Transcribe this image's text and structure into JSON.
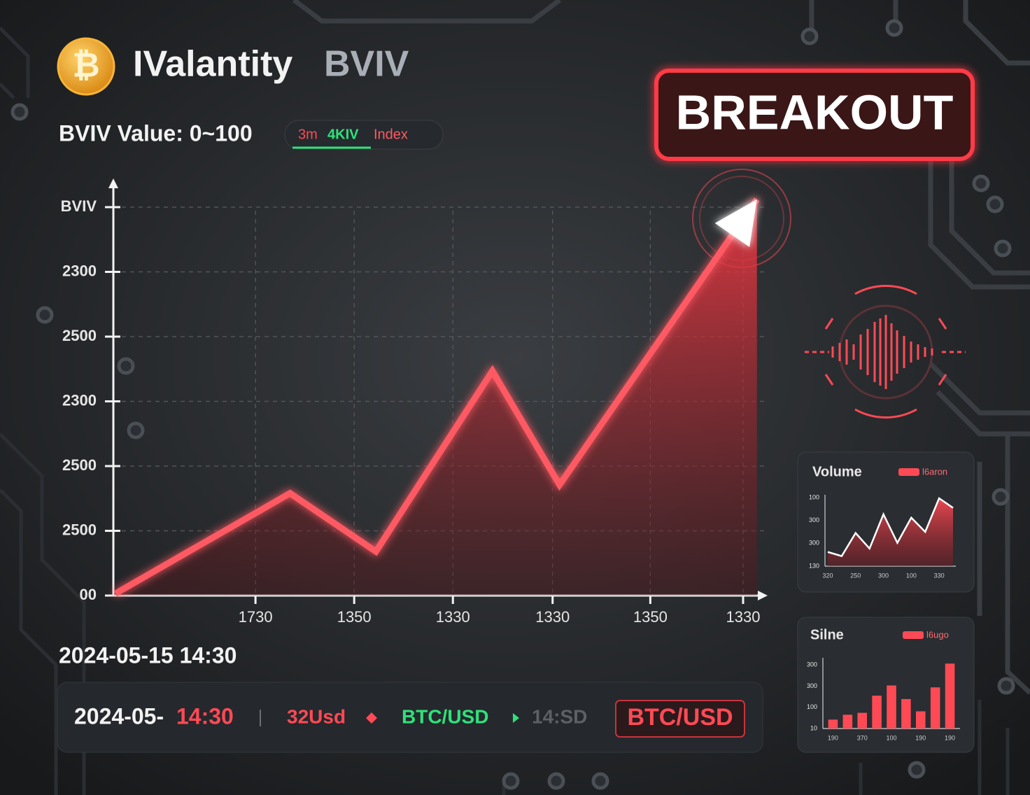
{
  "header": {
    "logo_symbol": "₿",
    "title": "IValantity",
    "ticker": "BVIV"
  },
  "subtitle": "BVIV Value: 0~100",
  "tabs": [
    "3m",
    "4KIV",
    "Index"
  ],
  "badge": "BREAKOUT",
  "timestamp": "2024-05-15 14:30",
  "status_bar": {
    "date": "2024-05-",
    "time": "14:30",
    "amount": "32Usd",
    "pair": "BTC/USD",
    "rate": "14:SD",
    "button": "BTC/USD"
  },
  "chart_data": [
    {
      "type": "area",
      "x": [
        0.02,
        1.79,
        2.66,
        3.84,
        4.52,
        6.52
      ],
      "series": [
        {
          "color": "#ff4a55",
          "values": [
            0.03,
            1.58,
            0.68,
            3.47,
            1.71,
            6.12
          ]
        }
      ],
      "xlim": [
        0,
        6.6
      ],
      "xticks": [
        {
          "value": 1.44,
          "label": "1730"
        },
        {
          "value": 2.44,
          "label": "1350"
        },
        {
          "value": 3.44,
          "label": "1330"
        },
        {
          "value": 4.45,
          "label": "1330"
        },
        {
          "value": 5.44,
          "label": "1350"
        },
        {
          "value": 6.38,
          "label": "1330"
        }
      ],
      "ylim": [
        0,
        6.4
      ],
      "yticks": [
        {
          "value": 0,
          "label": "00"
        },
        {
          "value": 1,
          "label": "2500"
        },
        {
          "value": 2,
          "label": "2500"
        },
        {
          "value": 3,
          "label": "2300"
        },
        {
          "value": 4,
          "label": "2500"
        },
        {
          "value": 5,
          "label": "2300"
        },
        {
          "value": 6,
          "label": "BVIV"
        }
      ],
      "grid": true
    },
    {
      "type": "line",
      "title": "Volume",
      "categories": [
        "320",
        null,
        "250",
        null,
        "300",
        null,
        "100",
        null,
        "330",
        null
      ],
      "series": [
        {
          "name": "l6aron",
          "color": "#ff4a55",
          "values": [
            0.62,
            0.44,
            1.45,
            0.77,
            2.27,
            1.02,
            2.12,
            1.5,
            2.97,
            2.55
          ]
        }
      ],
      "ylim": [
        0,
        3
      ],
      "yticks": [
        {
          "value": 0,
          "label": "130"
        },
        {
          "value": 1,
          "label": "300"
        },
        {
          "value": 2,
          "label": "300"
        },
        {
          "value": 3,
          "label": "100"
        }
      ],
      "grid": false
    },
    {
      "type": "bar",
      "title": "Silne",
      "categories": [
        "190",
        null,
        "370",
        null,
        "100",
        null,
        "190",
        null,
        "190"
      ],
      "series": [
        {
          "name": "l6ugo",
          "color": "#ff4a55",
          "values": [
            0.42,
            0.65,
            0.74,
            1.55,
            2.03,
            1.39,
            0.81,
            1.94,
            3.06
          ]
        }
      ],
      "ylim": [
        0,
        3.2
      ],
      "yticks": [
        {
          "value": 0,
          "label": "10"
        },
        {
          "value": 1,
          "label": "100"
        },
        {
          "value": 2,
          "label": "300"
        },
        {
          "value": 3,
          "label": "300"
        }
      ],
      "grid": false
    }
  ]
}
